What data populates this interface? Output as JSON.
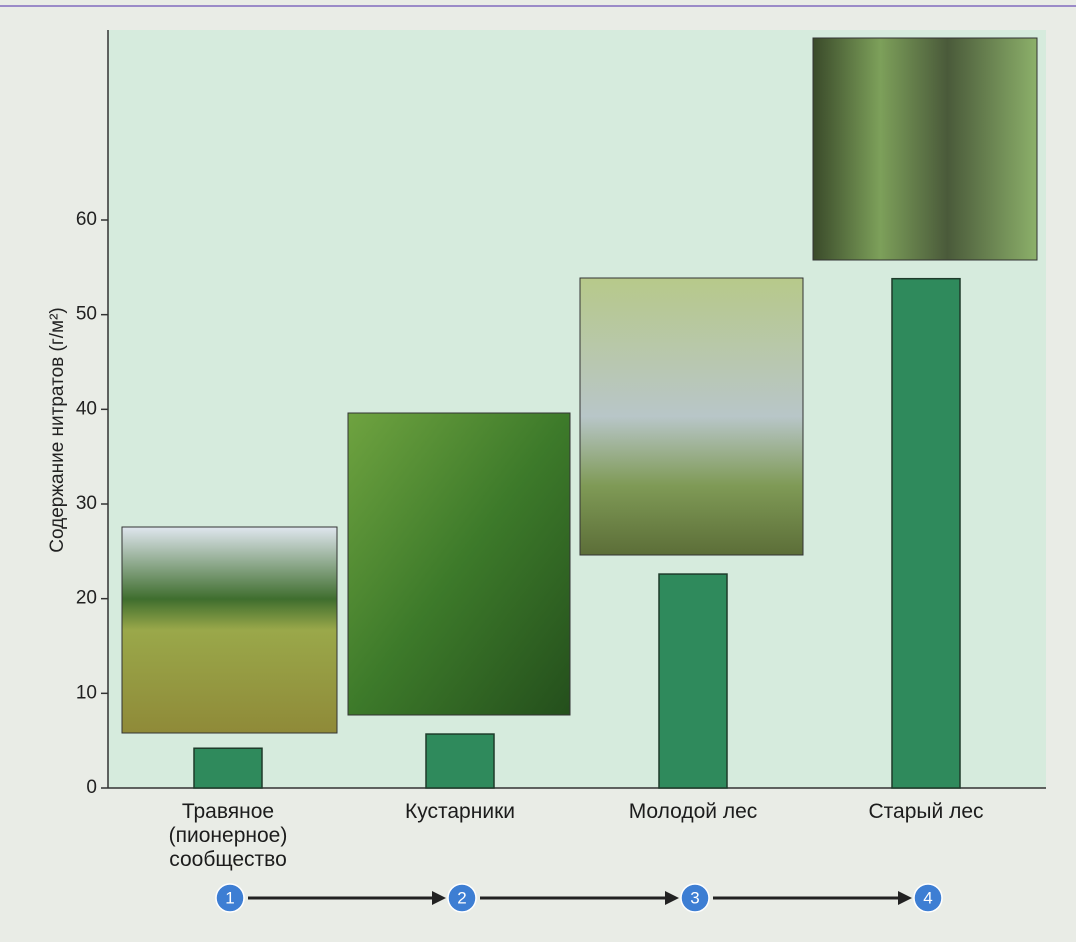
{
  "chart_data": {
    "type": "bar",
    "y_label": "Содержание нитратов (г/м²)",
    "categories": [
      "Травяное (пионерное) сообщество",
      "Кустарники",
      "Молодой лес",
      "Старый лес"
    ],
    "values": [
      4.2,
      5.7,
      22.6,
      53.8
    ],
    "color": "#2f8a5c",
    "ylim": [
      0,
      60
    ],
    "yticks": [
      0,
      10,
      20,
      30,
      40,
      50,
      60
    ],
    "stages": [
      "1",
      "2",
      "3",
      "4"
    ]
  }
}
